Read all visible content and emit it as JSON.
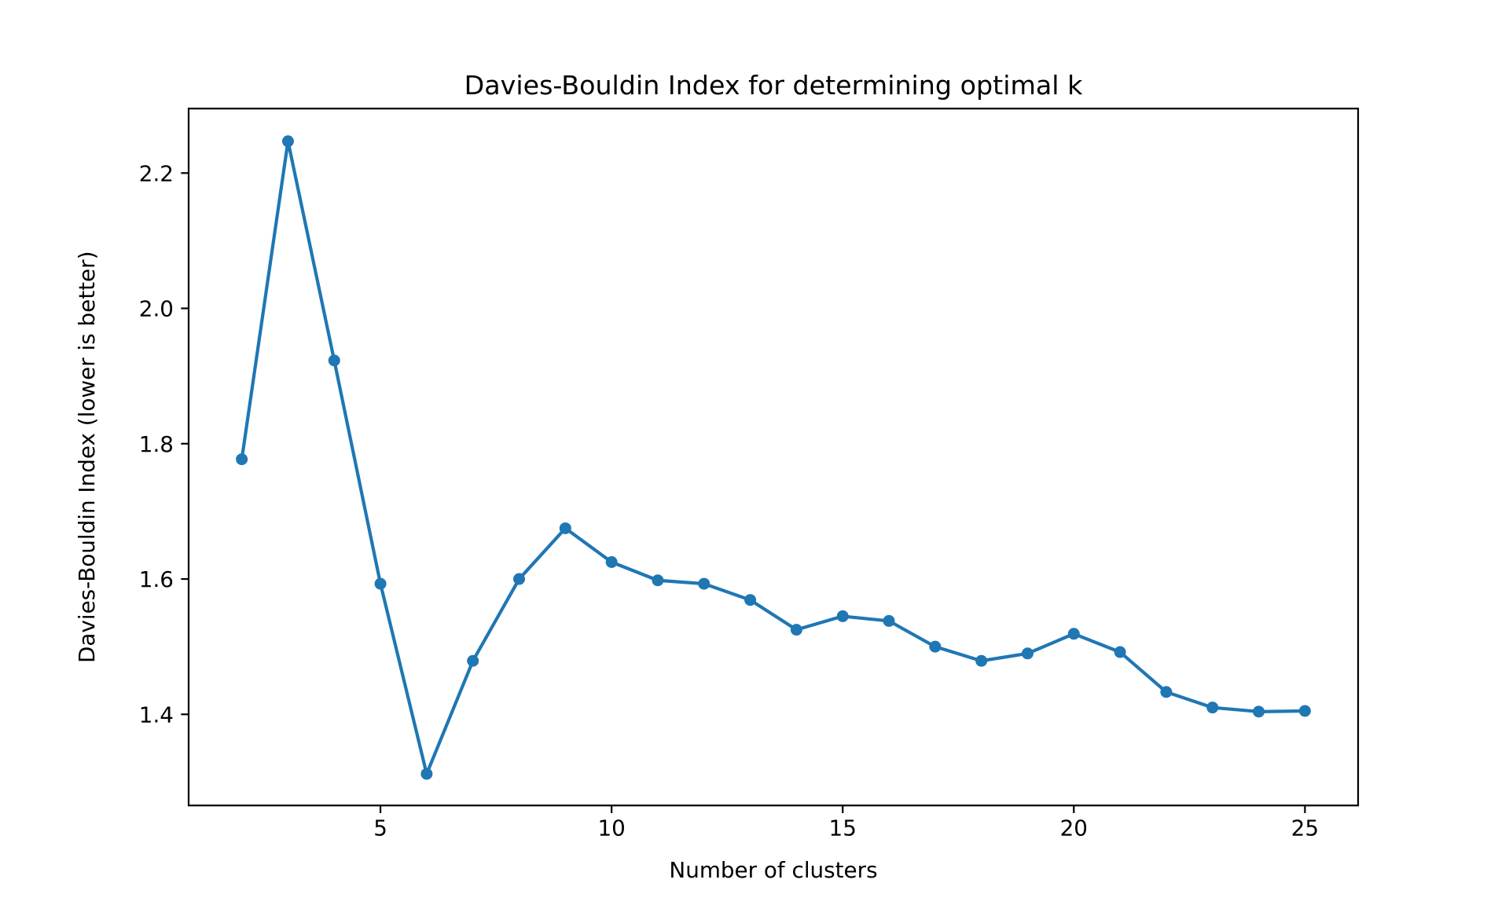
{
  "figure": {
    "background": "#ffffff",
    "text_color": "#000000"
  },
  "chart_data": {
    "type": "line",
    "title": "Davies-Bouldin Index for determining optimal k",
    "xlabel": "Number of clusters",
    "ylabel": "Davies-Bouldin Index (lower is better)",
    "series": [
      {
        "name": "Davies-Bouldin Index",
        "x": [
          2,
          3,
          4,
          5,
          6,
          7,
          8,
          9,
          10,
          11,
          12,
          13,
          14,
          15,
          16,
          17,
          18,
          19,
          20,
          21,
          22,
          23,
          24,
          25
        ],
        "y": [
          1.777,
          2.247,
          1.923,
          1.593,
          1.312,
          1.479,
          1.6,
          1.675,
          1.625,
          1.598,
          1.593,
          1.569,
          1.525,
          1.545,
          1.538,
          1.5,
          1.479,
          1.49,
          1.519,
          1.492,
          1.433,
          1.41,
          1.404,
          1.405
        ]
      }
    ],
    "xticks": [
      5,
      10,
      15,
      20,
      25
    ],
    "xtick_labels": [
      "5",
      "10",
      "15",
      "20",
      "25"
    ],
    "yticks": [
      1.4,
      1.6,
      1.8,
      2.0,
      2.2
    ],
    "ytick_labels": [
      "1.4",
      "1.6",
      "1.8",
      "2.0",
      "2.2"
    ],
    "xlim": [
      0.85,
      26.15
    ],
    "ylim": [
      1.2653,
      2.2953
    ],
    "grid": false,
    "line_color": "#1f77b4",
    "marker": "circle"
  }
}
